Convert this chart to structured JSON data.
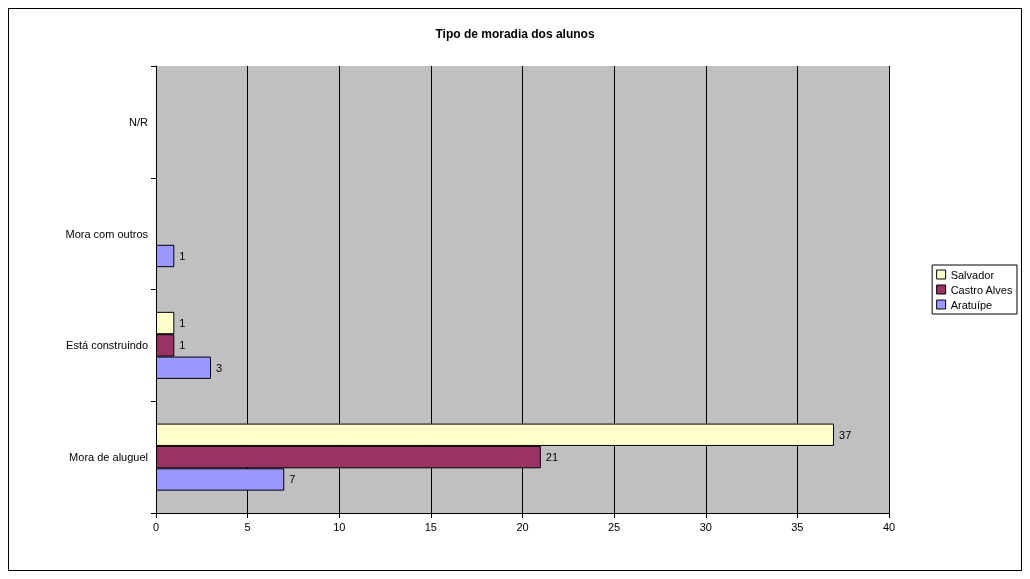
{
  "chart_data": {
    "type": "bar",
    "orientation": "horizontal",
    "title": "Tipo de moradia dos alunos",
    "categories": [
      "N/R",
      "Mora com outros",
      "Está construindo",
      "Mora de aluguel"
    ],
    "series": [
      {
        "name": "Salvador",
        "color": "#ffffcc",
        "values": [
          null,
          null,
          1,
          37
        ]
      },
      {
        "name": "Castro Alves",
        "color": "#993366",
        "values": [
          null,
          null,
          1,
          21
        ]
      },
      {
        "name": "Aratuípe",
        "color": "#9999ff",
        "values": [
          null,
          1,
          3,
          7
        ]
      }
    ],
    "xlim": [
      0,
      40
    ],
    "xticks": [
      0,
      5,
      10,
      15,
      20,
      25,
      30,
      35,
      40
    ],
    "grid": "x",
    "legend": "right",
    "data_labels": true
  }
}
